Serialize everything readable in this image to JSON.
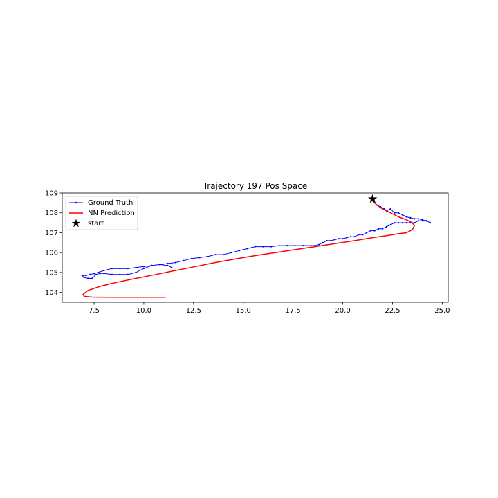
{
  "chart_data": {
    "type": "line",
    "title": "Trajectory 197 Pos Space",
    "xlabel": "",
    "ylabel": "",
    "xlim": [
      5.9,
      25.3
    ],
    "ylim": [
      103.5,
      109.0
    ],
    "x_ticks": [
      7.5,
      10.0,
      12.5,
      15.0,
      17.5,
      20.0,
      22.5,
      25.0
    ],
    "x_tick_labels": [
      "7.5",
      "10.0",
      "12.5",
      "15.0",
      "17.5",
      "20.0",
      "22.5",
      "25.0"
    ],
    "y_ticks": [
      104,
      105,
      106,
      107,
      108,
      109
    ],
    "y_tick_labels": [
      "104",
      "105",
      "106",
      "107",
      "108",
      "109"
    ],
    "grid": false,
    "legend_position": "top-left",
    "series": [
      {
        "name": "Ground Truth",
        "color": "#0000ff",
        "marker": "point",
        "x": [
          21.5,
          21.7,
          21.9,
          22.1,
          22.2,
          22.4,
          22.6,
          22.8,
          23.0,
          23.2,
          23.4,
          23.6,
          23.8,
          24.0,
          24.2,
          24.4,
          24.2,
          24.0,
          23.8,
          23.6,
          23.4,
          23.2,
          23.0,
          22.8,
          22.6,
          22.4,
          22.2,
          22.0,
          21.8,
          21.6,
          21.4,
          21.2,
          21.0,
          20.8,
          20.6,
          20.4,
          20.2,
          20.0,
          19.8,
          19.6,
          19.4,
          19.2,
          19.0,
          18.8,
          18.6,
          18.4,
          18.0,
          17.6,
          17.2,
          16.8,
          16.4,
          16.0,
          15.6,
          15.2,
          14.8,
          14.4,
          14.0,
          13.6,
          13.2,
          12.8,
          12.4,
          12.0,
          11.6,
          11.2,
          10.8,
          10.4,
          10.0,
          9.6,
          9.2,
          8.8,
          8.4,
          8.0,
          7.7,
          7.5,
          7.3,
          7.1,
          6.9,
          7.0,
          7.2,
          7.4,
          7.6,
          7.8,
          8.0,
          8.4,
          8.8,
          9.2,
          9.6,
          10.0,
          10.4,
          10.8,
          11.2,
          11.4
        ],
        "y": [
          108.7,
          108.4,
          108.3,
          108.2,
          108.1,
          108.2,
          108.0,
          108.0,
          107.9,
          107.8,
          107.75,
          107.7,
          107.7,
          107.65,
          107.6,
          107.5,
          107.6,
          107.6,
          107.6,
          107.5,
          107.5,
          107.5,
          107.5,
          107.5,
          107.5,
          107.4,
          107.3,
          107.2,
          107.2,
          107.1,
          107.1,
          107.0,
          106.9,
          106.9,
          106.8,
          106.8,
          106.75,
          106.7,
          106.7,
          106.65,
          106.6,
          106.6,
          106.5,
          106.4,
          106.35,
          106.35,
          106.35,
          106.35,
          106.35,
          106.35,
          106.3,
          106.3,
          106.3,
          106.2,
          106.1,
          106.0,
          105.9,
          105.9,
          105.8,
          105.75,
          105.7,
          105.6,
          105.5,
          105.45,
          105.4,
          105.35,
          105.3,
          105.25,
          105.2,
          105.2,
          105.2,
          105.1,
          105.0,
          104.95,
          104.9,
          104.85,
          104.85,
          104.75,
          104.7,
          104.7,
          104.9,
          104.95,
          104.95,
          104.9,
          104.9,
          104.9,
          105.0,
          105.2,
          105.35,
          105.4,
          105.35,
          105.25
        ]
      },
      {
        "name": "NN Prediction",
        "color": "#ff0000",
        "marker": "none",
        "x": [
          21.5,
          21.7,
          22.0,
          22.4,
          22.8,
          23.2,
          23.5,
          23.6,
          23.5,
          23.2,
          22.8,
          22.2,
          21.5,
          20.6,
          19.6,
          18.6,
          17.6,
          16.6,
          15.6,
          14.6,
          13.6,
          12.6,
          11.6,
          10.6,
          9.6,
          8.6,
          7.8,
          7.2,
          6.95,
          7.0,
          7.4,
          8.2,
          9.2,
          10.2,
          11.1
        ],
        "y": [
          108.6,
          108.4,
          108.2,
          108.0,
          107.8,
          107.65,
          107.5,
          107.35,
          107.15,
          107.0,
          106.95,
          106.85,
          106.75,
          106.6,
          106.45,
          106.3,
          106.15,
          106.0,
          105.85,
          105.68,
          105.5,
          105.3,
          105.1,
          104.9,
          104.7,
          104.5,
          104.3,
          104.1,
          103.9,
          103.8,
          103.76,
          103.75,
          103.75,
          103.75,
          103.75
        ]
      }
    ],
    "start_point": {
      "name": "start",
      "x": 21.5,
      "y": 108.7,
      "color": "#000000",
      "marker": "star"
    }
  }
}
